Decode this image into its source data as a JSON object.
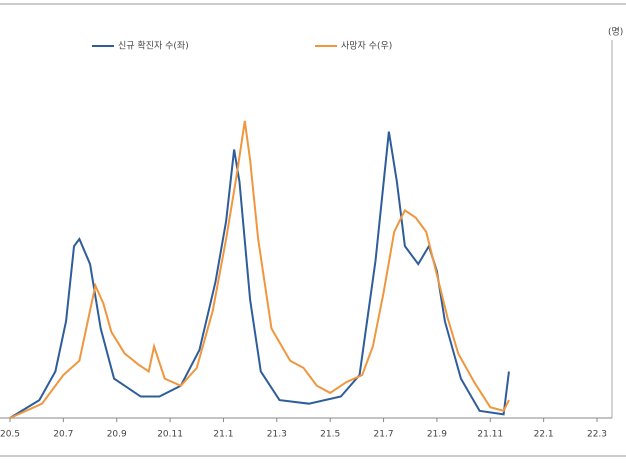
{
  "chart_data": {
    "type": "line",
    "unit_label": "(명)",
    "xlim": [
      0,
      22
    ],
    "xticks": [
      {
        "value": 0,
        "label": "20.5"
      },
      {
        "value": 2,
        "label": "20.7"
      },
      {
        "value": 4,
        "label": "20.9"
      },
      {
        "value": 6,
        "label": "20.11"
      },
      {
        "value": 8,
        "label": "21.1"
      },
      {
        "value": 10,
        "label": "21.3"
      },
      {
        "value": 12,
        "label": "21.5"
      },
      {
        "value": 14,
        "label": "21.7"
      },
      {
        "value": 16,
        "label": "21.9"
      },
      {
        "value": 18,
        "label": "21.11"
      },
      {
        "value": 20,
        "label": "22.1"
      },
      {
        "value": 22,
        "label": "22.3"
      }
    ],
    "ylim": [
      0,
      100
    ],
    "series": [
      {
        "name": "신규 확진자 수(좌)",
        "color": "#2e5d9a",
        "x": [
          0,
          1.1,
          1.7,
          2.1,
          2.4,
          2.6,
          3.0,
          3.4,
          3.9,
          4.9,
          5.6,
          6.4,
          7.1,
          7.7,
          8.1,
          8.4,
          8.6,
          9.0,
          9.4,
          10.1,
          11.2,
          12.4,
          13.1,
          13.7,
          14.2,
          14.5,
          14.8,
          15.3,
          15.7,
          16.0,
          16.3,
          16.9,
          17.6,
          18.5,
          18.7
        ],
        "values": [
          0,
          5,
          13,
          27,
          48,
          50,
          43,
          25,
          11,
          6,
          6,
          9,
          19,
          38,
          55,
          75,
          66,
          33,
          13,
          5,
          4,
          6,
          12,
          44,
          80,
          66,
          48,
          43,
          48,
          41,
          27,
          11,
          2,
          1,
          13
        ]
      },
      {
        "name": "사망자 수(우)",
        "color": "#f0963f",
        "x": [
          0,
          1.2,
          2.0,
          2.6,
          3.0,
          3.2,
          3.5,
          3.8,
          4.3,
          4.8,
          5.2,
          5.4,
          5.8,
          6.4,
          7.0,
          7.6,
          8.1,
          8.5,
          8.8,
          9.0,
          9.3,
          9.8,
          10.5,
          11.0,
          11.5,
          12.0,
          12.6,
          13.2,
          13.6,
          14.0,
          14.4,
          14.8,
          15.2,
          15.6,
          16.0,
          16.4,
          16.8,
          17.4,
          18.0,
          18.5,
          18.7
        ],
        "values": [
          0,
          4,
          12,
          16,
          30,
          37,
          32,
          24,
          18,
          15,
          13,
          20,
          11,
          9,
          14,
          30,
          50,
          68,
          83,
          72,
          50,
          25,
          16,
          14,
          9,
          7,
          10,
          12,
          20,
          35,
          52,
          58,
          56,
          52,
          40,
          28,
          18,
          10,
          3,
          2,
          5
        ]
      }
    ]
  }
}
